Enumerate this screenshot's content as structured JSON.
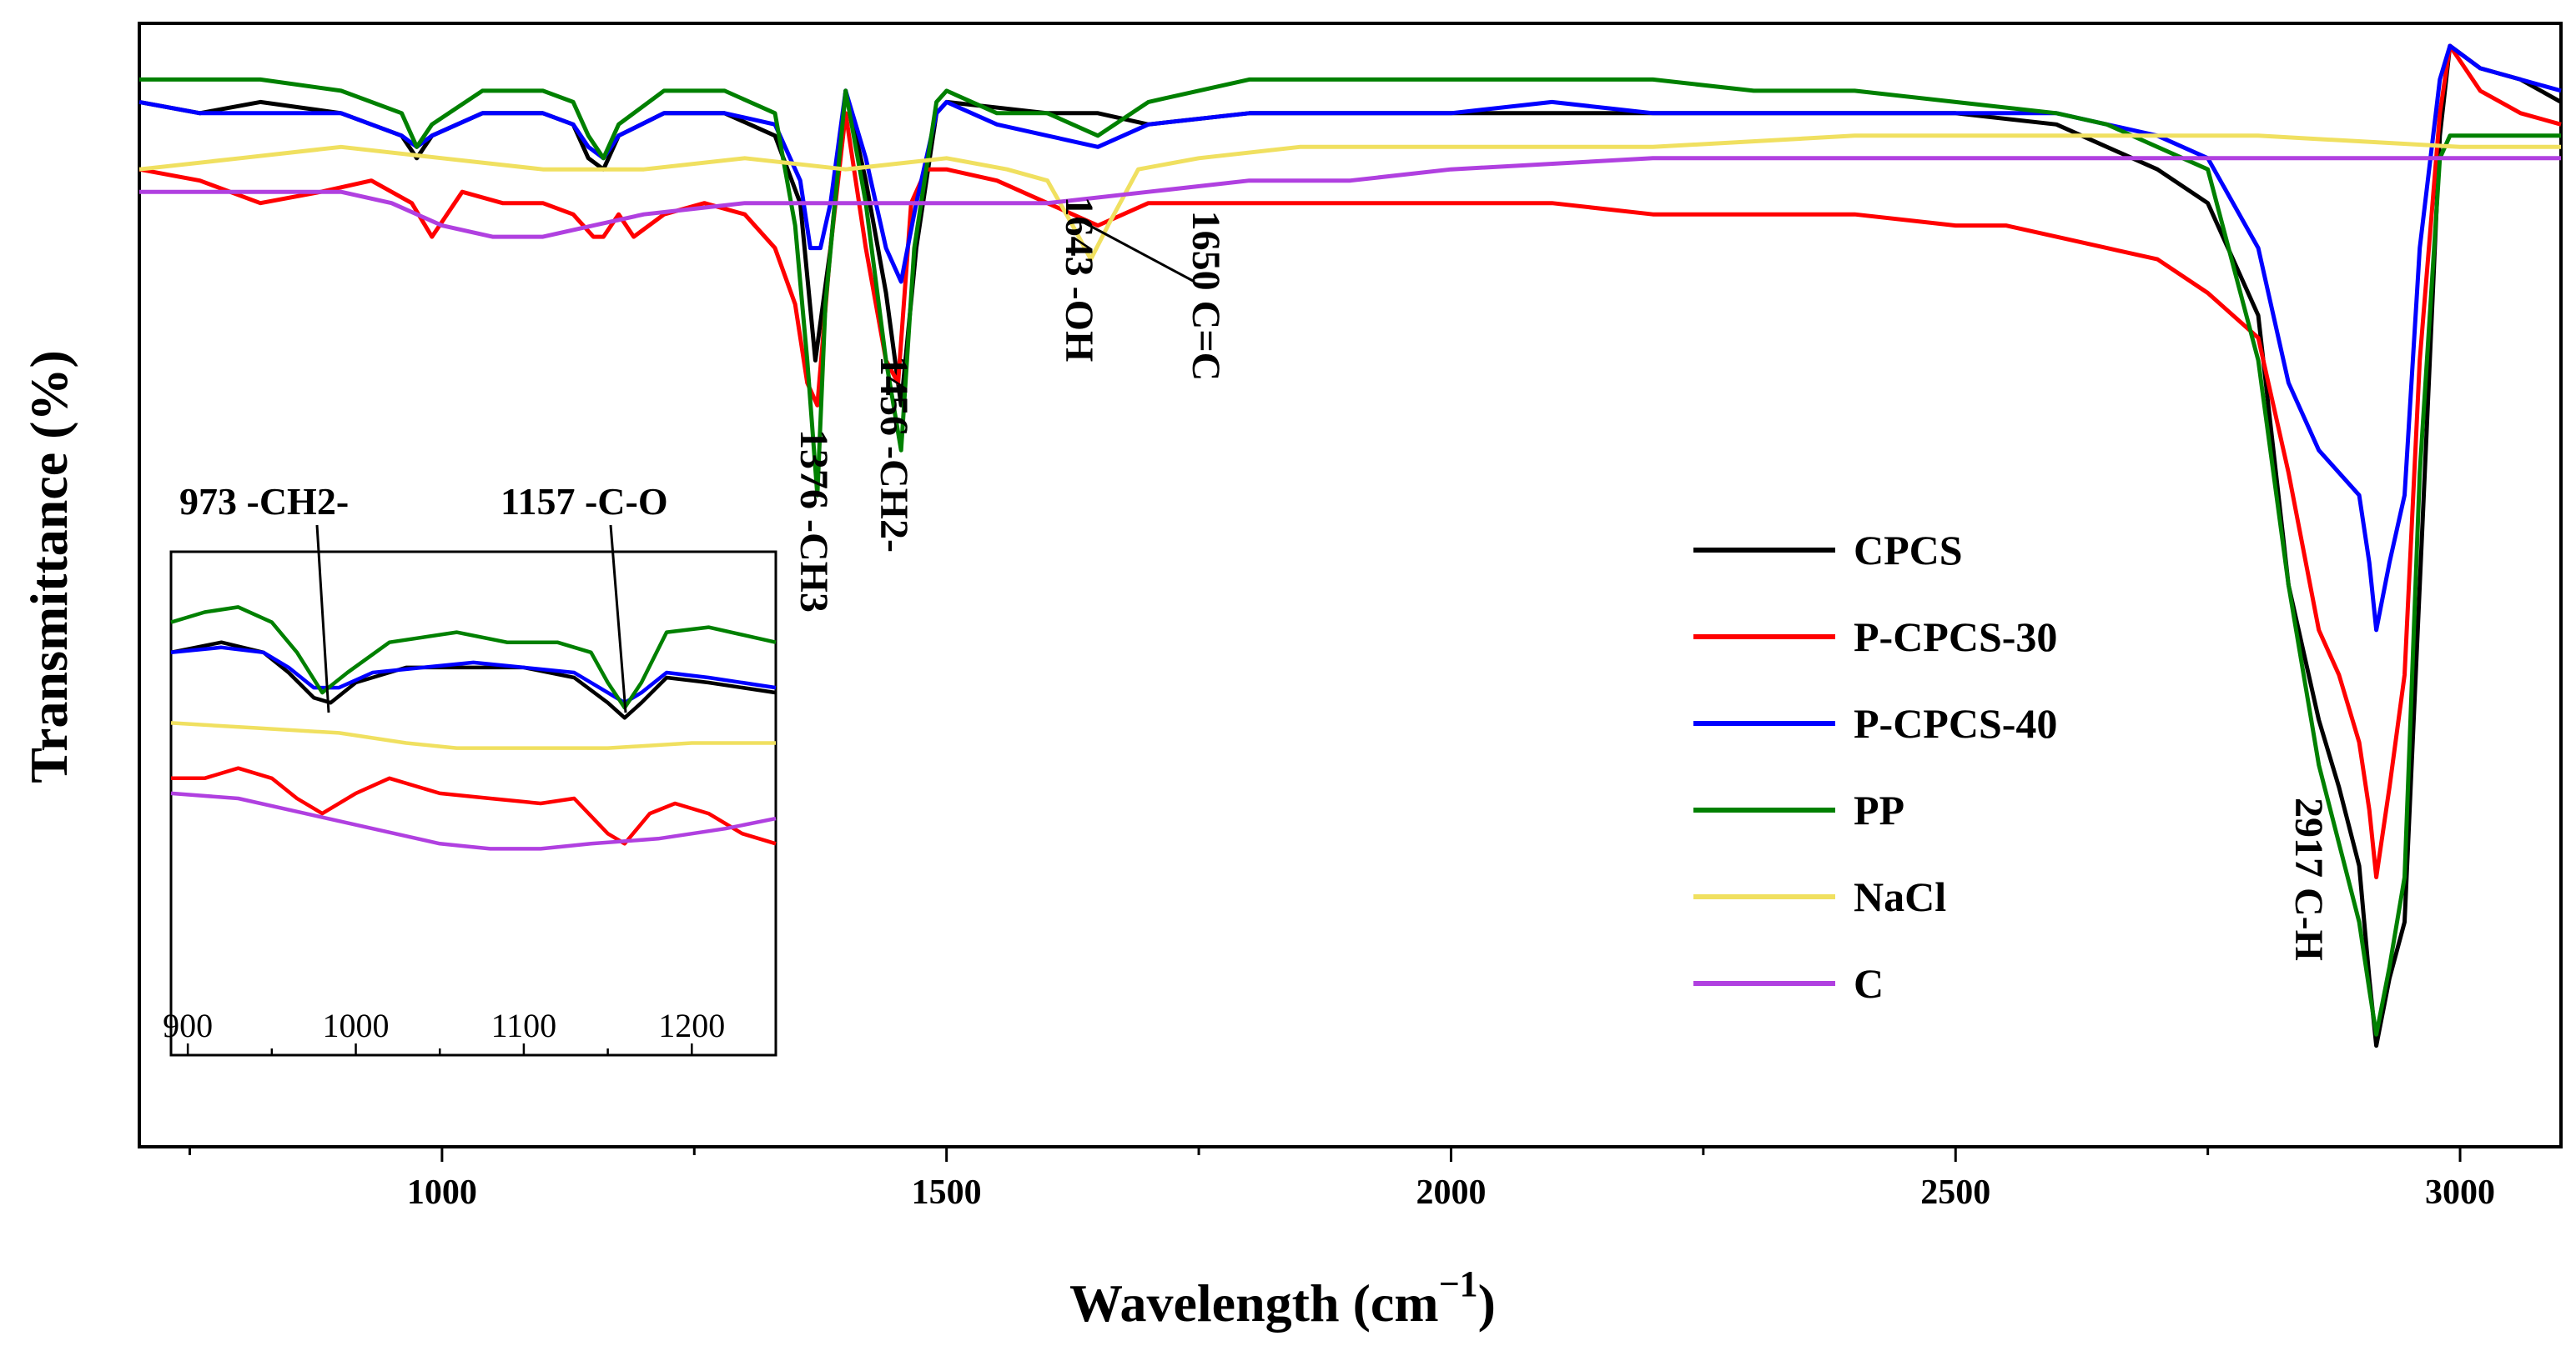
{
  "chart_data": {
    "type": "line",
    "xlabel": "Wavelength (cm",
    "xlabel_sup": "−1",
    "xlabel_close": ")",
    "ylabel": "Transmittance (%)",
    "xlim": [
      700,
      3100
    ],
    "ylim": [
      0,
      100
    ],
    "xticks": [
      1000,
      1500,
      2000,
      2500,
      3000
    ],
    "legend_position": "center-right",
    "series": [
      {
        "name": "CPCS",
        "color": "#000000",
        "x": [
          700,
          760,
          820,
          900,
          960,
          975,
          990,
          1040,
          1100,
          1130,
          1145,
          1160,
          1175,
          1220,
          1280,
          1330,
          1355,
          1370,
          1385,
          1400,
          1420,
          1440,
          1455,
          1470,
          1490,
          1500,
          1600,
          1650,
          1700,
          1800,
          1900,
          2000,
          2100,
          2200,
          2300,
          2400,
          2500,
          2600,
          2650,
          2700,
          2750,
          2800,
          2830,
          2860,
          2880,
          2900,
          2910,
          2917,
          2930,
          2945,
          2960,
          2980,
          2990,
          3020,
          3060,
          3100
        ],
        "y": [
          93,
          92,
          93,
          92,
          90,
          88,
          90,
          92,
          92,
          91,
          88,
          87,
          90,
          92,
          92,
          90,
          84,
          70,
          80,
          94,
          86,
          76,
          66,
          80,
          92,
          93,
          92,
          92,
          91,
          92,
          92,
          92,
          92,
          92,
          92,
          92,
          92,
          91,
          89,
          87,
          84,
          74,
          50,
          38,
          32,
          25,
          15,
          9,
          15,
          20,
          50,
          90,
          98,
          96,
          95,
          93
        ]
      },
      {
        "name": "P-CPCS-30",
        "color": "#ff0000",
        "x": [
          700,
          760,
          820,
          880,
          930,
          970,
          990,
          1020,
          1060,
          1100,
          1130,
          1150,
          1160,
          1175,
          1190,
          1220,
          1260,
          1300,
          1330,
          1350,
          1362,
          1372,
          1385,
          1400,
          1420,
          1440,
          1452,
          1465,
          1480,
          1500,
          1550,
          1600,
          1650,
          1700,
          1800,
          1900,
          2000,
          2100,
          2200,
          2300,
          2400,
          2500,
          2550,
          2600,
          2650,
          2700,
          2750,
          2800,
          2830,
          2860,
          2880,
          2900,
          2910,
          2917,
          2930,
          2945,
          2960,
          2980,
          2990,
          3020,
          3060,
          3100
        ],
        "y": [
          87,
          86,
          84,
          85,
          86,
          84,
          81,
          85,
          84,
          84,
          83,
          81,
          81,
          83,
          81,
          83,
          84,
          83,
          80,
          75,
          68,
          66,
          80,
          92,
          80,
          70,
          68,
          84,
          87,
          87,
          86,
          84,
          82,
          84,
          84,
          84,
          84,
          84,
          83,
          83,
          83,
          82,
          82,
          81,
          80,
          79,
          76,
          72,
          60,
          46,
          42,
          36,
          30,
          24,
          32,
          42,
          70,
          92,
          98,
          94,
          92,
          91
        ]
      },
      {
        "name": "P-CPCS-40",
        "color": "#0000ff",
        "x": [
          700,
          760,
          820,
          900,
          960,
          975,
          990,
          1040,
          1100,
          1130,
          1145,
          1160,
          1175,
          1220,
          1280,
          1330,
          1355,
          1365,
          1375,
          1385,
          1400,
          1420,
          1440,
          1455,
          1470,
          1490,
          1500,
          1550,
          1600,
          1650,
          1700,
          1800,
          1900,
          2000,
          2100,
          2200,
          2300,
          2400,
          2500,
          2600,
          2650,
          2700,
          2750,
          2800,
          2830,
          2860,
          2880,
          2900,
          2910,
          2917,
          2930,
          2945,
          2960,
          2980,
          2990,
          3020,
          3060,
          3100
        ],
        "y": [
          93,
          92,
          92,
          92,
          90,
          89,
          90,
          92,
          92,
          91,
          89,
          88,
          90,
          92,
          92,
          91,
          86,
          80,
          80,
          84,
          94,
          88,
          80,
          77,
          84,
          92,
          93,
          91,
          90,
          89,
          91,
          92,
          92,
          92,
          93,
          92,
          92,
          92,
          92,
          92,
          91,
          90,
          88,
          80,
          68,
          62,
          60,
          58,
          52,
          46,
          52,
          58,
          80,
          95,
          98,
          96,
          95,
          94
        ]
      },
      {
        "name": "PP",
        "color": "#008000",
        "x": [
          700,
          760,
          820,
          900,
          960,
          975,
          990,
          1040,
          1100,
          1130,
          1145,
          1160,
          1175,
          1220,
          1280,
          1330,
          1350,
          1362,
          1372,
          1380,
          1400,
          1420,
          1440,
          1455,
          1468,
          1490,
          1500,
          1550,
          1600,
          1650,
          1700,
          1800,
          1900,
          2000,
          2100,
          2200,
          2300,
          2400,
          2500,
          2600,
          2650,
          2700,
          2750,
          2800,
          2830,
          2860,
          2880,
          2900,
          2910,
          2917,
          2930,
          2945,
          2960,
          2980,
          2990,
          3020,
          3060,
          3100
        ],
        "y": [
          95,
          95,
          95,
          94,
          92,
          89,
          91,
          94,
          94,
          93,
          90,
          88,
          91,
          94,
          94,
          92,
          82,
          70,
          58,
          75,
          94,
          84,
          70,
          62,
          80,
          93,
          94,
          92,
          92,
          90,
          93,
          95,
          95,
          95,
          95,
          95,
          94,
          94,
          93,
          92,
          91,
          89,
          87,
          70,
          50,
          34,
          27,
          20,
          14,
          10,
          16,
          24,
          60,
          88,
          90,
          90,
          90,
          90
        ]
      },
      {
        "name": "NaCl",
        "color": "#f0e060",
        "x": [
          700,
          800,
          900,
          1000,
          1100,
          1200,
          1300,
          1400,
          1500,
          1560,
          1600,
          1625,
          1643,
          1660,
          1690,
          1750,
          1850,
          2000,
          2200,
          2400,
          2600,
          2800,
          3000,
          3100
        ],
        "y": [
          87,
          88,
          89,
          88,
          87,
          87,
          88,
          87,
          88,
          87,
          86,
          82,
          79,
          82,
          87,
          88,
          89,
          89,
          89,
          90,
          90,
          90,
          89,
          89
        ]
      },
      {
        "name": "C",
        "color": "#b040e0",
        "x": [
          700,
          800,
          900,
          950,
          1000,
          1050,
          1100,
          1150,
          1200,
          1300,
          1400,
          1500,
          1600,
          1700,
          1800,
          1900,
          2000,
          2200,
          2400,
          2600,
          2800,
          3000,
          3100
        ],
        "y": [
          85,
          85,
          85,
          84,
          82,
          81,
          81,
          82,
          83,
          84,
          84,
          84,
          84,
          85,
          86,
          86,
          87,
          88,
          88,
          88,
          88,
          88,
          88
        ]
      }
    ],
    "annotations": [
      {
        "text": "1376 -CH3",
        "x": 1376
      },
      {
        "text": "1456 -CH2-",
        "x": 1456
      },
      {
        "text": "1643 -OH",
        "x": 1643
      },
      {
        "text": "1650 C=C",
        "x": 1650
      },
      {
        "text": "2917 C-H",
        "x": 2917
      }
    ],
    "inset": {
      "xlim": [
        890,
        1250
      ],
      "xticks": [
        900,
        1000,
        1100,
        1200
      ],
      "annotations": [
        {
          "text": "973 -CH2-",
          "x": 973
        },
        {
          "text": "1157 -C-O",
          "x": 1157
        }
      ],
      "series": [
        {
          "name": "CPCS",
          "color": "#000000",
          "x": [
            890,
            920,
            945,
            960,
            975,
            985,
            1000,
            1030,
            1060,
            1100,
            1130,
            1150,
            1160,
            1170,
            1185,
            1210,
            1250
          ],
          "y": [
            80,
            82,
            80,
            76,
            71,
            70,
            74,
            77,
            77,
            77,
            75,
            70,
            67,
            70,
            75,
            74,
            72
          ]
        },
        {
          "name": "P-CPCS-30",
          "color": "#ff0000",
          "x": [
            890,
            910,
            930,
            950,
            965,
            980,
            1000,
            1020,
            1050,
            1080,
            1110,
            1130,
            1150,
            1160,
            1175,
            1190,
            1210,
            1230,
            1250
          ],
          "y": [
            55,
            55,
            57,
            55,
            51,
            48,
            52,
            55,
            52,
            51,
            50,
            51,
            44,
            42,
            48,
            50,
            48,
            44,
            42
          ]
        },
        {
          "name": "P-CPCS-40",
          "color": "#0000ff",
          "x": [
            890,
            920,
            945,
            960,
            975,
            990,
            1010,
            1040,
            1070,
            1100,
            1130,
            1150,
            1160,
            1170,
            1185,
            1210,
            1250
          ],
          "y": [
            80,
            81,
            80,
            77,
            73,
            73,
            76,
            77,
            78,
            77,
            76,
            72,
            70,
            72,
            76,
            75,
            73
          ]
        },
        {
          "name": "PP",
          "color": "#008000",
          "x": [
            890,
            910,
            930,
            950,
            965,
            980,
            995,
            1020,
            1060,
            1090,
            1120,
            1140,
            1150,
            1160,
            1170,
            1185,
            1210,
            1250
          ],
          "y": [
            86,
            88,
            89,
            86,
            80,
            72,
            76,
            82,
            84,
            82,
            82,
            80,
            74,
            69,
            74,
            84,
            85,
            82
          ]
        },
        {
          "name": "NaCl",
          "color": "#f0e060",
          "x": [
            890,
            940,
            990,
            1030,
            1060,
            1100,
            1150,
            1200,
            1250
          ],
          "y": [
            66,
            65,
            64,
            62,
            61,
            61,
            61,
            62,
            62
          ]
        },
        {
          "name": "C",
          "color": "#b040e0",
          "x": [
            890,
            930,
            970,
            1010,
            1050,
            1080,
            1110,
            1140,
            1180,
            1220,
            1250
          ],
          "y": [
            52,
            51,
            48,
            45,
            42,
            41,
            41,
            42,
            43,
            45,
            47
          ]
        }
      ]
    }
  }
}
